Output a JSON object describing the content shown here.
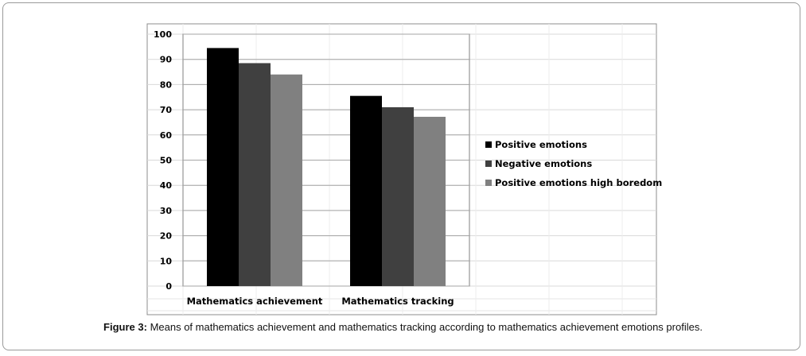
{
  "figure": {
    "label": "Figure 3:",
    "caption": "Means of mathematics achievement and mathematics tracking according to mathematics achievement emotions profiles."
  },
  "chart_data": {
    "type": "bar",
    "categories": [
      "Mathematics achievement",
      "Mathematics tracking"
    ],
    "series": [
      {
        "name": "Positive emotions",
        "values": [
          94.5,
          75.5
        ],
        "color": "#000000"
      },
      {
        "name": "Negative emotions",
        "values": [
          88.5,
          71.0
        ],
        "color": "#404040"
      },
      {
        "name": "Positive emotions high boredom",
        "values": [
          84.0,
          67.2
        ],
        "color": "#808080"
      }
    ],
    "yticks": [
      0,
      10,
      20,
      30,
      40,
      50,
      60,
      70,
      80,
      90,
      100
    ],
    "ylim": [
      0,
      100
    ],
    "grid": true,
    "legend": "right"
  }
}
